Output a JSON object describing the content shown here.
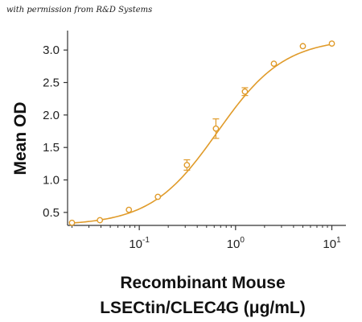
{
  "credit": "with permission from R&D Systems",
  "chart_data": {
    "type": "scatter",
    "xscale": "log",
    "xlim": [
      0.018,
      14
    ],
    "ylim": [
      0.3,
      3.25
    ],
    "ylabel": "Mean OD",
    "xlabel_line1": "Recombinant Mouse",
    "xlabel_line2": "LSECtin/CLEC4G (μg/mL)",
    "ytick_values": [
      0.5,
      1.0,
      1.5,
      2.0,
      2.5,
      3.0
    ],
    "ytick_labels": [
      "0.5",
      "1.0",
      "1.5",
      "2.0",
      "2.5",
      "3.0"
    ],
    "xtick_values": [
      0.1,
      1,
      10
    ],
    "xtick_bases": [
      "10",
      "10",
      "10"
    ],
    "xtick_exponents": [
      "-1",
      "0",
      "1"
    ],
    "series": [
      {
        "x": [
          0.02,
          0.039,
          0.078,
          0.156,
          0.3125,
          0.625,
          1.25,
          2.5,
          5,
          10
        ],
        "y": [
          0.34,
          0.38,
          0.54,
          0.74,
          1.23,
          1.79,
          2.36,
          2.79,
          3.06,
          3.1
        ],
        "err": [
          0.02,
          0.03,
          0.03,
          0.02,
          0.08,
          0.15,
          0.06,
          0.03,
          0.03,
          0.03
        ],
        "fit": "4PL"
      }
    ],
    "fit_params": {
      "bottom": 0.3,
      "top": 3.18,
      "ec50": 0.65,
      "hill": 1.25
    },
    "color": "#E09B2A",
    "grid": false
  }
}
